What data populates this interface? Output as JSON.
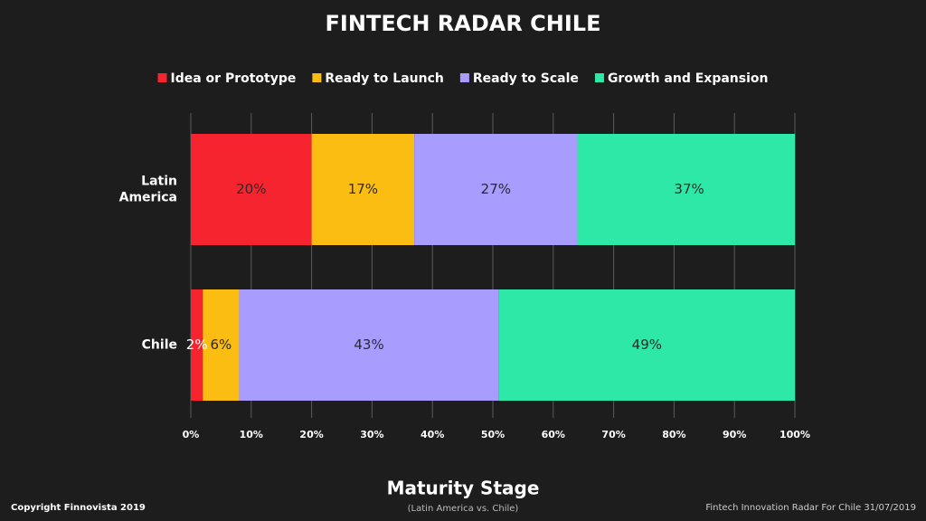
{
  "chart_data": {
    "type": "stacked-bar-horizontal",
    "title": "FINTECH RADAR CHILE",
    "x_label": "Maturity Stage",
    "x_sublabel": "(Latin America vs. Chile)",
    "categories": [
      "Latin America",
      "Chile"
    ],
    "series": [
      {
        "name": "Idea or Prototype",
        "color": "#f5242f",
        "values": [
          20,
          2
        ],
        "value_labels": [
          "20%",
          "2%"
        ]
      },
      {
        "name": "Ready to Launch",
        "color": "#fbbd12",
        "values": [
          17,
          6
        ],
        "value_labels": [
          "17%",
          "6%"
        ]
      },
      {
        "name": "Ready to Scale",
        "color": "#a99cff",
        "values": [
          27,
          43
        ],
        "value_labels": [
          "27%",
          "43%"
        ]
      },
      {
        "name": "Growth and Expansion",
        "color": "#2de8a6",
        "values": [
          37,
          49
        ],
        "value_labels": [
          "37%",
          "49%"
        ]
      }
    ],
    "xlim": [
      0,
      100
    ],
    "xticks": [
      {
        "value": 0,
        "label": "0%"
      },
      {
        "value": 10,
        "label": "10%"
      },
      {
        "value": 20,
        "label": "20%"
      },
      {
        "value": 30,
        "label": "30%"
      },
      {
        "value": 40,
        "label": "40%"
      },
      {
        "value": 50,
        "label": "50%"
      },
      {
        "value": 60,
        "label": "60%"
      },
      {
        "value": 70,
        "label": "70%"
      },
      {
        "value": 80,
        "label": "80%"
      },
      {
        "value": 90,
        "label": "90%"
      },
      {
        "value": 100,
        "label": "100%"
      }
    ],
    "grid": true,
    "legend": "top"
  },
  "footer": {
    "left": "Copyright Finnovista 2019",
    "right": "Fintech Innovation Radar For Chile 31/07/2019"
  }
}
